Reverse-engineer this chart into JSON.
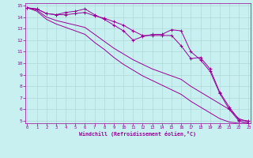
{
  "title": "",
  "xlabel": "Windchill (Refroidissement éolien,°C)",
  "ylabel": "",
  "bg_color": "#c8f0f0",
  "grid_color": "#b0d8d8",
  "line_color": "#990099",
  "x_min": 0,
  "x_max": 23,
  "y_min": 5,
  "y_max": 15,
  "series": [
    [
      14.8,
      14.7,
      14.3,
      14.2,
      14.2,
      14.3,
      14.4,
      14.1,
      13.9,
      13.6,
      13.3,
      12.8,
      12.4,
      12.4,
      12.4,
      12.4,
      11.5,
      10.4,
      10.5,
      9.5,
      7.5,
      6.2,
      5.1,
      5.0
    ],
    [
      14.8,
      14.7,
      14.3,
      14.2,
      14.4,
      14.5,
      14.7,
      14.2,
      13.8,
      13.3,
      12.8,
      12.0,
      12.3,
      12.5,
      12.5,
      12.9,
      12.8,
      11.0,
      10.3,
      9.3,
      7.4,
      6.0,
      5.0,
      4.8
    ],
    [
      14.8,
      14.6,
      14.0,
      13.7,
      13.5,
      13.3,
      13.1,
      12.5,
      11.9,
      11.3,
      10.8,
      10.3,
      9.9,
      9.5,
      9.2,
      8.9,
      8.6,
      8.0,
      7.5,
      7.0,
      6.5,
      6.0,
      5.2,
      4.9
    ],
    [
      14.8,
      14.5,
      13.8,
      13.4,
      13.1,
      12.8,
      12.5,
      11.8,
      11.2,
      10.5,
      9.9,
      9.4,
      8.9,
      8.5,
      8.1,
      7.7,
      7.3,
      6.7,
      6.2,
      5.7,
      5.2,
      4.9,
      4.8,
      4.8
    ]
  ],
  "has_markers": [
    true,
    true,
    false,
    false
  ]
}
